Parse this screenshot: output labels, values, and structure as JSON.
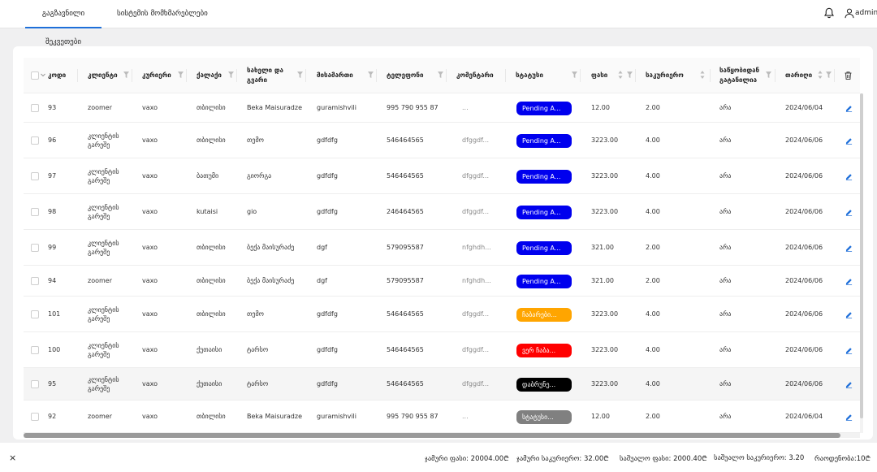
{
  "nav": {
    "tab_orders": "გაგზავნილი შეკვეთები",
    "tab_users": "სისტემის მომხმარებლები",
    "user": "admin"
  },
  "columns": {
    "code": "კოდი",
    "client": "კლიენტი",
    "courier": "კურიერი",
    "city": "ქალაქი",
    "name_line1": "სახელი და",
    "name_line2": "გვარი",
    "address": "მისამართი",
    "phone": "ტელეფონი",
    "comment": "კომენტარი",
    "status": "სტატუსი",
    "price": "ფასი",
    "courier_fee": "საკურიერო",
    "from_warehouse_line1": "საწყობიდან",
    "from_warehouse_line2": "გატანილია",
    "date": "თარიღი"
  },
  "colors": {
    "pending": "#0000ee",
    "in_progress": "#ffa500",
    "not_delivered": "#ff0000",
    "returned": "#000000",
    "status_default": "#808080",
    "accent": "#1e6fd9"
  },
  "rows": [
    {
      "code": "93",
      "client_1": "zoomer",
      "client_2": "",
      "courier": "vaxo",
      "city": "თბილისი",
      "name": "Beka Maisuradze",
      "address": "guramishvili",
      "phone": "995 790 955 87",
      "comment": "...",
      "status": "Pending A...",
      "status_color": "#0000ee",
      "price": "12.00",
      "fee": "2.00",
      "taken": "არა",
      "date": "2024/06/04"
    },
    {
      "code": "96",
      "client_1": "კლიენტის",
      "client_2": "გარეშე",
      "courier": "vaxo",
      "city": "თბილისი",
      "name": "თემო",
      "address": "gdfdfg",
      "phone": "546464565",
      "comment": "dfggdf...",
      "status": "Pending A...",
      "status_color": "#0000ee",
      "price": "3223.00",
      "fee": "4.00",
      "taken": "არა",
      "date": "2024/06/06"
    },
    {
      "code": "97",
      "client_1": "კლიენტის",
      "client_2": "გარეშე",
      "courier": "vaxo",
      "city": "ბათუმი",
      "name": "გიორგა",
      "address": "gdfdfg",
      "phone": "546464565",
      "comment": "dfggdf...",
      "status": "Pending A...",
      "status_color": "#0000ee",
      "price": "3223.00",
      "fee": "4.00",
      "taken": "არა",
      "date": "2024/06/06"
    },
    {
      "code": "98",
      "client_1": "კლიენტის",
      "client_2": "გარეშე",
      "courier": "vaxo",
      "city": "kutaisi",
      "name": "gio",
      "address": "gdfdfg",
      "phone": "246464565",
      "comment": "dfggdf...",
      "status": "Pending A...",
      "status_color": "#0000ee",
      "price": "3223.00",
      "fee": "4.00",
      "taken": "არა",
      "date": "2024/06/06"
    },
    {
      "code": "99",
      "client_1": "კლიენტის",
      "client_2": "გარეშე",
      "courier": "vaxo",
      "city": "თბილისი",
      "name": "ბექა მაისურაძე",
      "address": "dgf",
      "phone": "579095587",
      "comment": "nfghdh...",
      "status": "Pending A...",
      "status_color": "#0000ee",
      "price": "321.00",
      "fee": "2.00",
      "taken": "არა",
      "date": "2024/06/06"
    },
    {
      "code": "94",
      "client_1": "zoomer",
      "client_2": "",
      "courier": "vaxo",
      "city": "თბილისი",
      "name": "ბექა მაისურაძე",
      "address": "dgf",
      "phone": "579095587",
      "comment": "nfghdh...",
      "status": "Pending A...",
      "status_color": "#0000ee",
      "price": "321.00",
      "fee": "2.00",
      "taken": "არა",
      "date": "2024/06/06"
    },
    {
      "code": "101",
      "client_1": "კლიენტის",
      "client_2": "გარეშე",
      "courier": "vaxo",
      "city": "თბილისი",
      "name": "თემო",
      "address": "gdfdfg",
      "phone": "546464565",
      "comment": "dfggdf...",
      "status": "ჩაბარები...",
      "status_color": "#ffa500",
      "price": "3223.00",
      "fee": "4.00",
      "taken": "არა",
      "date": "2024/06/06"
    },
    {
      "code": "100",
      "client_1": "კლიენტის",
      "client_2": "გარეშე",
      "courier": "vaxo",
      "city": "ქუთაისი",
      "name": "ტარსო",
      "address": "gdfdfg",
      "phone": "546464565",
      "comment": "dfggdf...",
      "status": "ვერ ჩაბა...",
      "status_color": "#ff0000",
      "price": "3223.00",
      "fee": "4.00",
      "taken": "არა",
      "date": "2024/06/06"
    },
    {
      "code": "95",
      "client_1": "კლიენტის",
      "client_2": "გარეშე",
      "courier": "vaxo",
      "city": "ქუთაისი",
      "name": "ტარსო",
      "address": "gdfdfg",
      "phone": "546464565",
      "comment": "dfggdf...",
      "status": "დაბრუნე...",
      "status_color": "#000000",
      "price": "3223.00",
      "fee": "4.00",
      "taken": "არა",
      "date": "2024/06/06"
    },
    {
      "code": "92",
      "client_1": "zoomer",
      "client_2": "",
      "courier": "vaxo",
      "city": "თბილისი",
      "name": "Beka Maisuradze",
      "address": "guramishvili",
      "phone": "995 790 955 87",
      "comment": "...",
      "status": "სტატუსი...",
      "status_color": "#808080",
      "price": "12.00",
      "fee": "2.00",
      "taken": "არა",
      "date": "2024/06/04"
    }
  ],
  "footer": {
    "close": "×",
    "total_price": "ჯამური ფასი: 20004.00₾",
    "total_courier": "ჯამური საკურიერო: 32.00₾",
    "avg_price": "საშუალო ფასი: 2000.40₾",
    "avg_courier": "საშუალო საკურიერო: 3.20",
    "count": "რაოდენობა:10₾"
  }
}
